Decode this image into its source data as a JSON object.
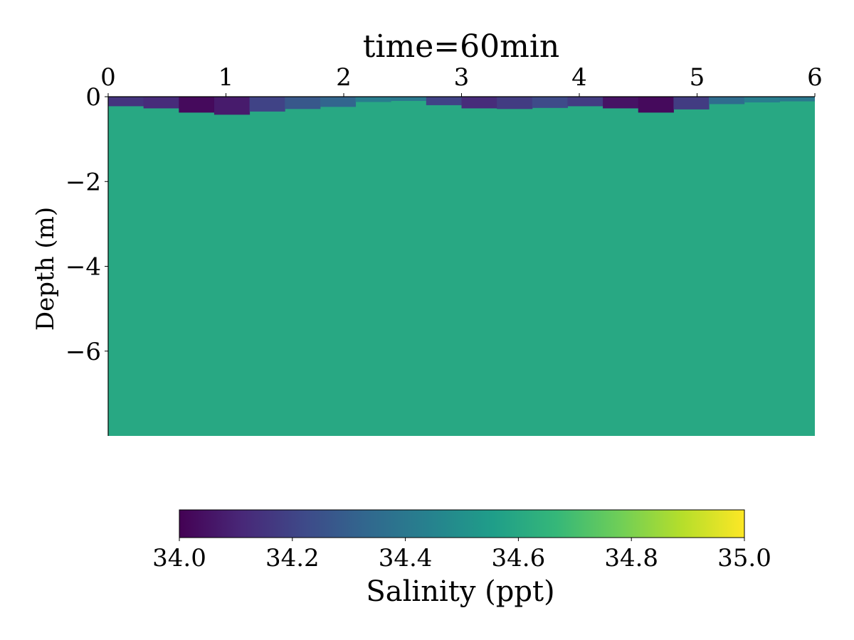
{
  "chart_data": {
    "type": "heatmap",
    "title": "time=60min",
    "xlabel": "",
    "ylabel": "Depth (m)",
    "xlim": [
      0,
      6
    ],
    "ylim": [
      -8,
      0
    ],
    "x_ticks": [
      0,
      1,
      2,
      3,
      4,
      5,
      6
    ],
    "x_tick_labels": [
      "0",
      "1",
      "2",
      "3",
      "4",
      "5",
      "6"
    ],
    "x_axis_position": "top",
    "y_ticks": [
      0,
      -2,
      -4,
      -6
    ],
    "y_tick_labels": [
      "0",
      "−2",
      "−4",
      "−6"
    ],
    "grid": false,
    "colormap": "viridis",
    "background_value": 34.6,
    "surface_layer": {
      "description_value_range": [
        34.0,
        34.6
      ],
      "x": [
        0,
        0.3,
        0.6,
        0.9,
        1.2,
        1.5,
        1.8,
        2.1,
        2.4,
        2.7,
        3.0,
        3.3,
        3.6,
        3.9,
        4.2,
        4.5,
        4.8,
        5.1,
        5.4,
        5.7,
        6.0
      ],
      "bottom_depth": [
        -0.2,
        -0.25,
        -0.3,
        -0.45,
        -0.4,
        -0.3,
        -0.28,
        -0.2,
        -0.05,
        -0.15,
        -0.25,
        -0.3,
        -0.28,
        -0.25,
        -0.2,
        -0.35,
        -0.4,
        -0.2,
        -0.15,
        -0.12,
        -0.1
      ],
      "min_salinity": [
        34.1,
        34.2,
        34.05,
        34.0,
        34.15,
        34.25,
        34.3,
        34.35,
        34.5,
        34.3,
        34.1,
        34.15,
        34.2,
        34.25,
        34.1,
        34.0,
        34.05,
        34.3,
        34.4,
        34.45,
        34.35
      ]
    },
    "colorbar": {
      "label": "Salinity (ppt)",
      "range": [
        34.0,
        35.0
      ],
      "ticks": [
        34.0,
        34.2,
        34.4,
        34.6,
        34.8,
        35.0
      ],
      "tick_labels": [
        "34.0",
        "34.2",
        "34.4",
        "34.6",
        "34.8",
        "35.0"
      ],
      "orientation": "horizontal",
      "position": "bottom"
    },
    "viridis_stops": [
      "#440154",
      "#482878",
      "#3e4a89",
      "#31688e",
      "#26828e",
      "#1f9e89",
      "#35b779",
      "#6ece58",
      "#b5de2b",
      "#fde725"
    ]
  }
}
